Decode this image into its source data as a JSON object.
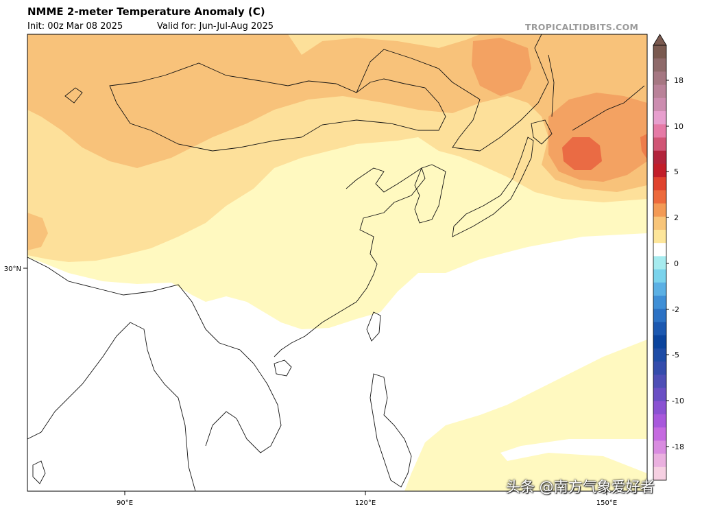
{
  "header": {
    "title": "NMME 2-meter Temperature Anomaly (C)",
    "init": "Init: 00z Mar 08 2025",
    "valid": "Valid for: Jun-Jul-Aug 2025",
    "brand": "TROPICALTIDBITS.COM"
  },
  "axes": {
    "lon_labels": [
      "90°E",
      "120°E",
      "150°E"
    ],
    "lat_labels": [
      "30°N"
    ]
  },
  "colorbar": {
    "unit": "C",
    "tick_labels": [
      "18",
      "10",
      "5",
      "2",
      "0",
      "-2",
      "-5",
      "-10",
      "-18"
    ],
    "colors": [
      "#7a5a50",
      "#8e6a6a",
      "#a57782",
      "#b98299",
      "#cc8db0",
      "#e79fce",
      "#e57aa6",
      "#d05575",
      "#b2243c",
      "#c21e2a",
      "#e0432e",
      "#ed6a3c",
      "#f39a55",
      "#f8c579",
      "#fde69b",
      "#ffffff",
      "#a6ebef",
      "#7ad3ec",
      "#5bb0e4",
      "#3f8fd6",
      "#2c72c4",
      "#1c58b0",
      "#0b449d",
      "#1e4ca6",
      "#344cac",
      "#4e4eb6",
      "#6a4fc4",
      "#8a52d2",
      "#a858dc",
      "#c56ae0",
      "#d98ce0",
      "#eab0df",
      "#f6d0e2"
    ]
  },
  "watermark": "头条 @南方气象爱好者"
}
